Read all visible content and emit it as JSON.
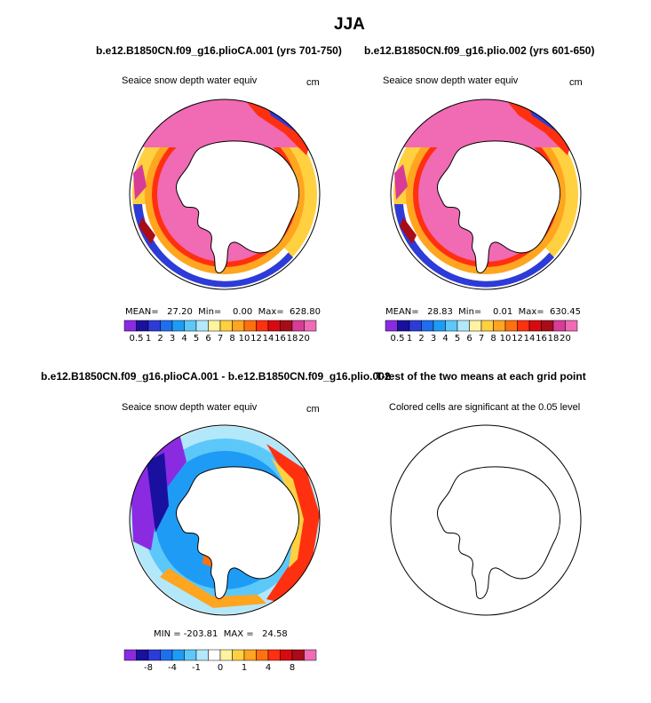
{
  "page_title": "JJA",
  "panels": [
    {
      "title": "b.e12.B1850CN.f09_g16.plioCA.001 (yrs 701-750)",
      "subtitle": "Seaice snow depth water equiv",
      "units": "cm",
      "stats": "MEAN=   27.20  Min=    0.00  Max=  628.80"
    },
    {
      "title": "b.e12.B1850CN.f09_g16.plio.002 (yrs 601-650)",
      "subtitle": "Seaice snow depth water equiv",
      "units": "cm",
      "stats": "MEAN=   28.83  Min=    0.01  Max=  630.45"
    },
    {
      "title": "b.e12.B1850CN.f09_g16.plioCA.001 - b.e12.B1850CN.f09_g16.plio.002",
      "subtitle": "Seaice snow depth water equiv",
      "units": "cm",
      "stats": "MIN = -203.81  MAX =   24.58"
    },
    {
      "title": "T-test of the two means at each grid point",
      "subtitle": "Colored cells are significant at the 0.05 level"
    }
  ],
  "colorbar_main": {
    "labels": [
      "0.5",
      "1",
      "2",
      "3",
      "4",
      "5",
      "6",
      "7",
      "8",
      "10",
      "12",
      "14",
      "16",
      "18",
      "20"
    ],
    "colors": [
      "#8a2be2",
      "#1a10a0",
      "#2d3bd8",
      "#1e6ef0",
      "#1e9cf5",
      "#5cc8fa",
      "#b3e8fb",
      "#fff2a0",
      "#ffd040",
      "#ffa520",
      "#ff7010",
      "#ff3010",
      "#d80a10",
      "#a80c18",
      "#d83c96",
      "#f06ab4"
    ]
  },
  "colorbar_diff": {
    "labels": [
      "-8",
      "-4",
      "-1",
      "0",
      "1",
      "4",
      "8"
    ],
    "colors": [
      "#8a2be2",
      "#1a10a0",
      "#2d3bd8",
      "#1e6ef0",
      "#1e9cf5",
      "#5cc8fa",
      "#b3e8fb",
      "#ffffff",
      "#fff2a0",
      "#ffd040",
      "#ffa520",
      "#ff7010",
      "#ff3010",
      "#d80a10",
      "#a80c18",
      "#f06ab4"
    ]
  },
  "colors": {
    "ice_core": "#f06ab4",
    "land": "#ffffff",
    "outline": "#000000"
  }
}
